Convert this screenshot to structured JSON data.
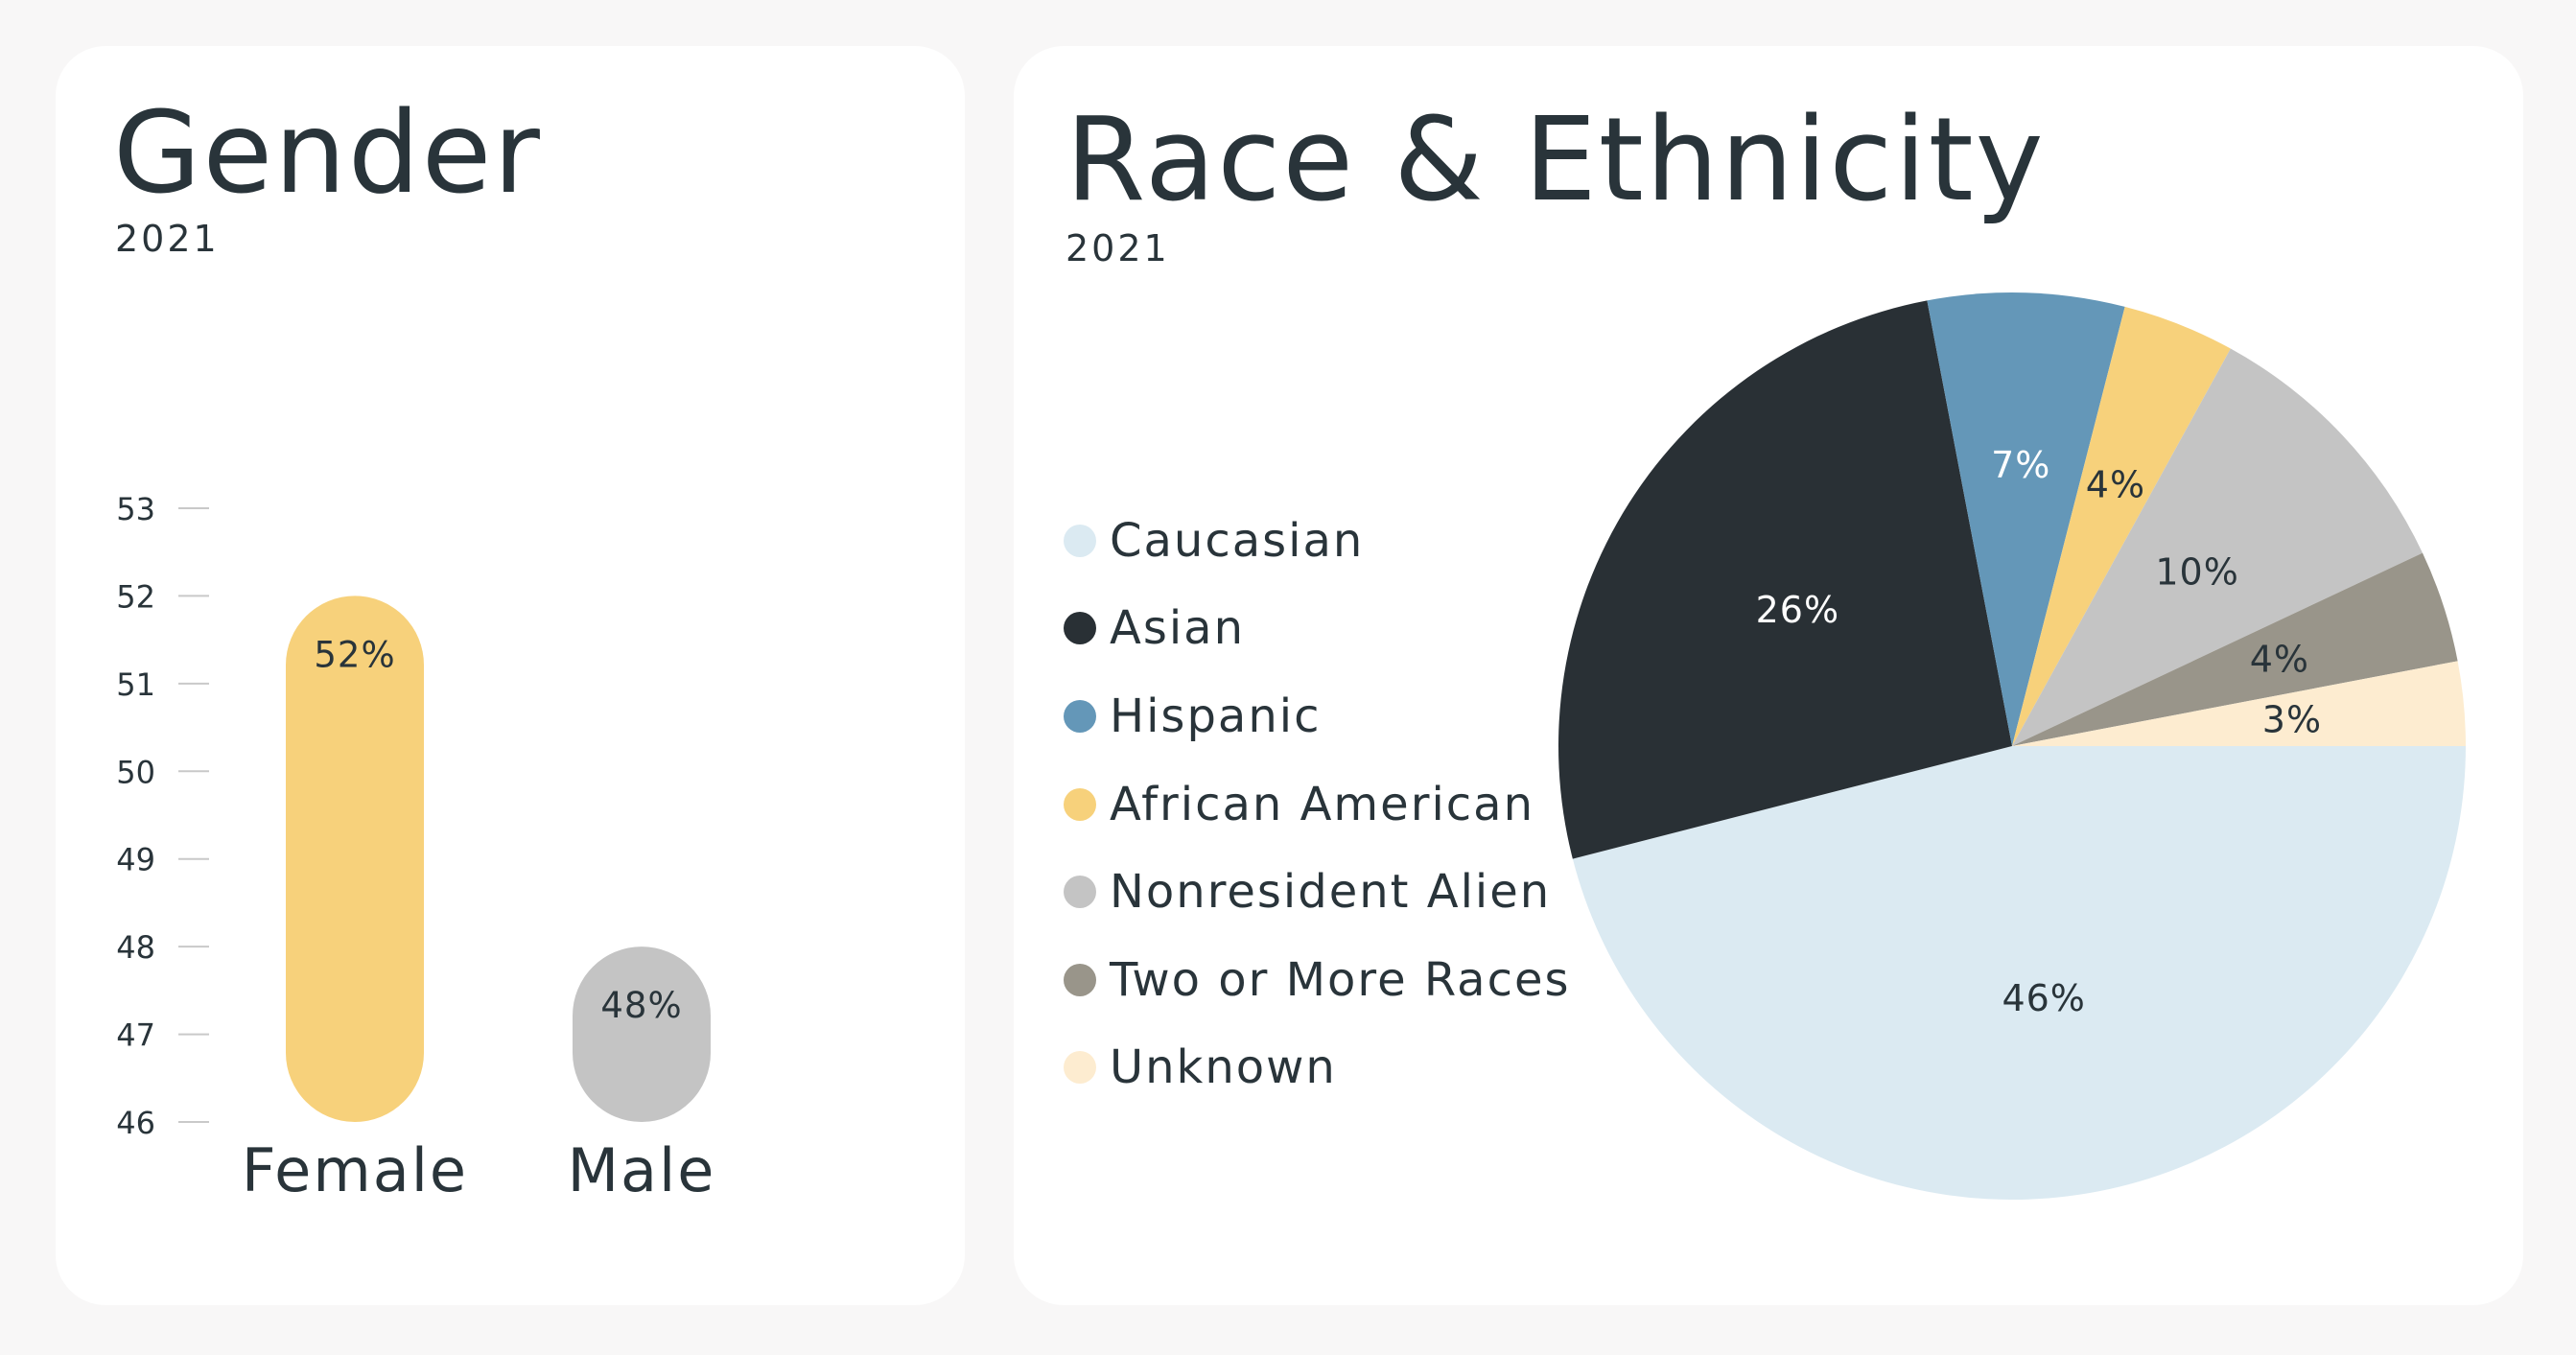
{
  "gender": {
    "title": "Gender",
    "year": "2021"
  },
  "race": {
    "title": "Race  & Ethnicity",
    "year": "2021"
  },
  "chart_data": [
    {
      "type": "bar",
      "title": "Gender",
      "subtitle": "2021",
      "categories": [
        "Female",
        "Male"
      ],
      "values": [
        52,
        48
      ],
      "data_labels": [
        "52%",
        "48%"
      ],
      "colors": [
        "#f7d17b",
        "#c4c4c4"
      ],
      "ylim": [
        46,
        53
      ],
      "yticks": [
        46,
        47,
        48,
        49,
        50,
        51,
        52,
        53
      ],
      "grid": false,
      "xlabel": "",
      "ylabel": ""
    },
    {
      "type": "pie",
      "title": "Race  & Ethnicity",
      "subtitle": "2021",
      "legend_position": "left",
      "categories": [
        "Caucasian",
        "Asian",
        "Hispanic",
        "African American",
        "Nonresident Alien",
        "Two or More Races",
        "Unknown"
      ],
      "values": [
        46,
        26,
        7,
        4,
        10,
        4,
        3
      ],
      "data_labels": [
        "46%",
        "26%",
        "7%",
        "4%",
        "10%",
        "4%",
        "3%"
      ],
      "colors": [
        "#dbeaf2",
        "#293035",
        "#6497b8",
        "#f7d17b",
        "#c4c4c4",
        "#99958a",
        "#fdecd0"
      ],
      "label_colors": [
        "#29343a",
        "#ffffff",
        "#ffffff",
        "#29343a",
        "#29343a",
        "#29343a",
        "#29343a"
      ]
    }
  ]
}
